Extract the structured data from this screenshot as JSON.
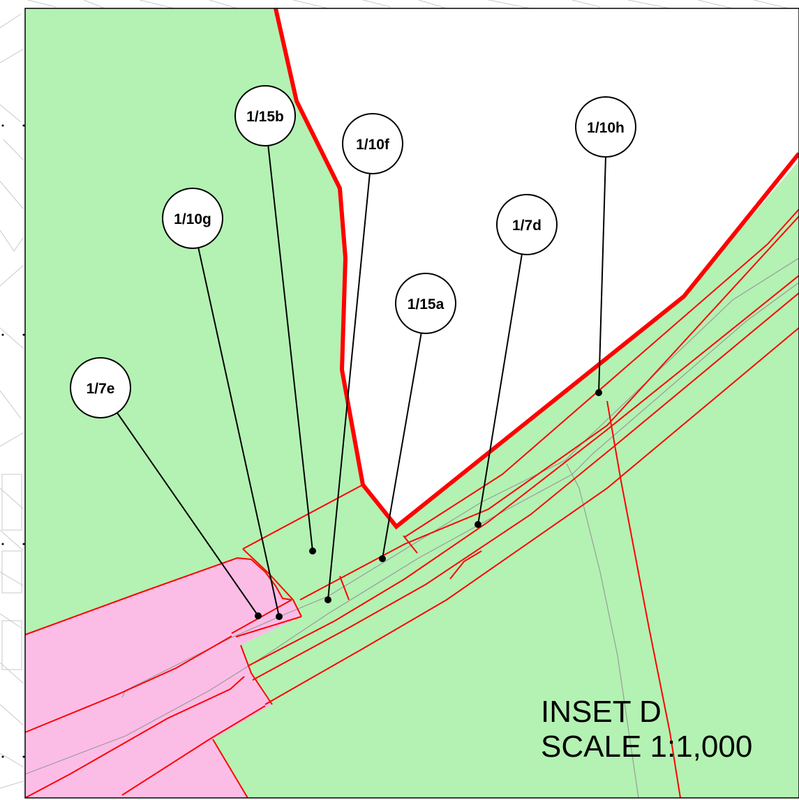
{
  "inset": {
    "title": "INSET D",
    "scale": "SCALE 1:1,000"
  },
  "colors": {
    "green_area": "#b3f2b3",
    "pink_area": "#fbbde6",
    "boundary_red": "#ff0000",
    "background_lines": "#c8c8c8",
    "leader": "#000000"
  },
  "plots": [
    {
      "id": "1/7e"
    },
    {
      "id": "1/10g"
    },
    {
      "id": "1/15b"
    },
    {
      "id": "1/10f"
    },
    {
      "id": "1/15a"
    },
    {
      "id": "1/7d"
    },
    {
      "id": "1/10h"
    }
  ]
}
